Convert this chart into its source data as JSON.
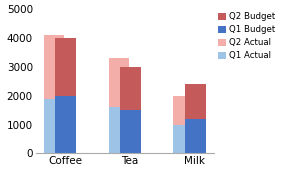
{
  "categories": [
    "Coffee",
    "Tea",
    "Milk"
  ],
  "series": {
    "Q1 Actual": [
      1900,
      1600,
      1000
    ],
    "Q2 Actual": [
      2200,
      1700,
      1000
    ],
    "Q1 Budget": [
      2000,
      1500,
      1200
    ],
    "Q2 Budget": [
      2000,
      1500,
      1200
    ]
  },
  "colors": {
    "Q1 Actual": "#9dc3e6",
    "Q2 Actual": "#f4aeaa",
    "Q1 Budget": "#4472c4",
    "Q2 Budget": "#c55a5a"
  },
  "legend_order": [
    "Q2 Budget",
    "Q1 Budget",
    "Q2 Actual",
    "Q1 Actual"
  ],
  "ylim": [
    0,
    5000
  ],
  "yticks": [
    0,
    1000,
    2000,
    3000,
    4000,
    5000
  ],
  "bar_width": 0.32,
  "bar_gap": 0.02,
  "background_color": "#ffffff",
  "figsize": [
    2.97,
    1.87
  ],
  "dpi": 100
}
